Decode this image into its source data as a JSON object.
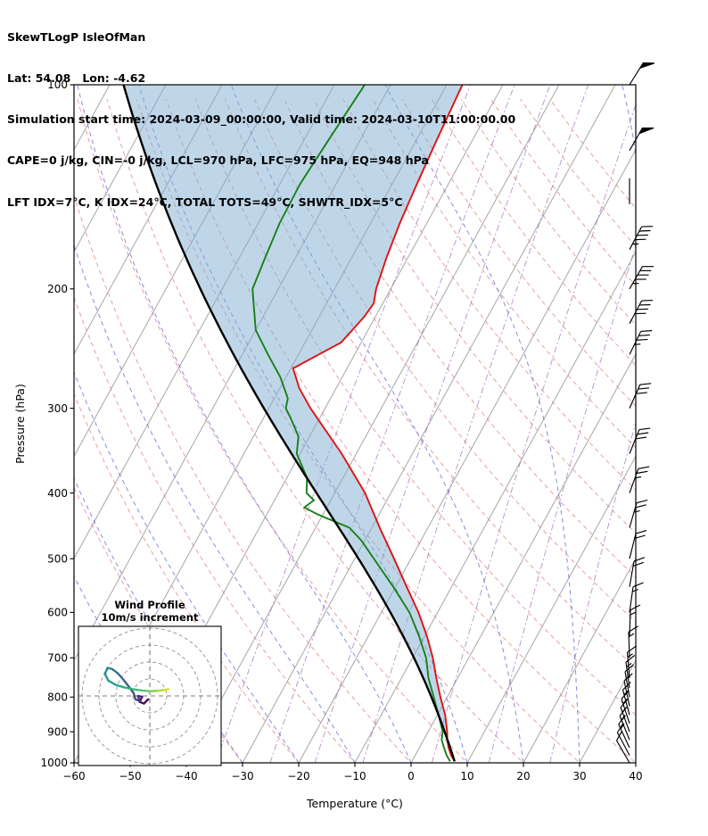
{
  "header": {
    "line1": "SkewTLogP IsleOfMan",
    "line2": "Lat: 54.08   Lon: -4.62",
    "line3": "Simulation start time: 2024-03-09_00:00:00, Valid time: 2024-03-10T11:00:00.00",
    "line4": "CAPE=0 j/kg, CIN=-0 j/kg, LCL=970 hPa, LFC=975 hPa, EQ=948 hPa",
    "line5": "LFT IDX=7°C, K IDX=24°C, TOTAL TOTS=49°C, SHWTR_IDX=5°C"
  },
  "chart_data": {
    "type": "skewt-logp-sounding",
    "skew_factor": 0.55,
    "x_axis": {
      "label": "Temperature (°C)",
      "min": -60,
      "max": 40,
      "ticks": [
        -60,
        -50,
        -40,
        -30,
        -20,
        -10,
        0,
        10,
        20,
        30,
        40
      ]
    },
    "y_axis": {
      "label": "Pressure (hPa)",
      "scale": "log",
      "min": 100,
      "max": 1000,
      "ticks": [
        100,
        200,
        300,
        400,
        500,
        600,
        700,
        800,
        900,
        1000
      ]
    },
    "background": {
      "isotherms_c": [
        -150,
        -140,
        -130,
        -120,
        -110,
        -100,
        -90,
        -80,
        -70,
        -60,
        -50,
        -40,
        -30,
        -20,
        -10,
        0,
        10,
        20,
        30,
        40
      ],
      "isotherm_color": "#a6a6a6",
      "dry_adiabats_theta_c": [
        -30,
        -20,
        -10,
        0,
        10,
        20,
        30,
        40,
        50,
        60,
        70,
        80,
        90,
        100,
        110,
        120,
        130,
        140,
        150,
        160,
        170
      ],
      "dry_adiabat_color": "#e08080",
      "moist_adiabats_t0_c": [
        -40,
        -30,
        -20,
        -10,
        0,
        10,
        20,
        30,
        40
      ],
      "moist_adiabat_color": "#5959d6",
      "mixing_ratio_g_kg": [
        0.2,
        0.5,
        1,
        2,
        5,
        10,
        20
      ],
      "mixing_ratio_color": "#9a50b4"
    },
    "temperature_profile": {
      "color": "#e01212",
      "points": [
        [
          995,
          7.6
        ],
        [
          975,
          6.4
        ],
        [
          950,
          5.2
        ],
        [
          925,
          4.2
        ],
        [
          900,
          3.4
        ],
        [
          850,
          1.4
        ],
        [
          800,
          -1.2
        ],
        [
          750,
          -3.8
        ],
        [
          700,
          -6.4
        ],
        [
          650,
          -9.6
        ],
        [
          600,
          -13.4
        ],
        [
          550,
          -18.0
        ],
        [
          500,
          -23.0
        ],
        [
          450,
          -28.6
        ],
        [
          400,
          -34.6
        ],
        [
          350,
          -42.6
        ],
        [
          300,
          -52.6
        ],
        [
          280,
          -56.6
        ],
        [
          262,
          -59.6
        ],
        [
          250,
          -56.4
        ],
        [
          240,
          -53.6
        ],
        [
          230,
          -52.8
        ],
        [
          220,
          -52.0
        ],
        [
          210,
          -51.6
        ],
        [
          200,
          -52.6
        ],
        [
          180,
          -53.8
        ],
        [
          160,
          -54.8
        ],
        [
          140,
          -55.6
        ],
        [
          120,
          -56.4
        ],
        [
          100,
          -57.2
        ]
      ]
    },
    "dewpoint_profile": {
      "color": "#188018",
      "points": [
        [
          995,
          6.8
        ],
        [
          975,
          5.6
        ],
        [
          950,
          4.4
        ],
        [
          925,
          3.2
        ],
        [
          900,
          2.6
        ],
        [
          850,
          0.2
        ],
        [
          800,
          -2.4
        ],
        [
          750,
          -5.2
        ],
        [
          700,
          -7.6
        ],
        [
          650,
          -11.0
        ],
        [
          600,
          -15.0
        ],
        [
          550,
          -20.4
        ],
        [
          500,
          -26.6
        ],
        [
          470,
          -30.6
        ],
        [
          450,
          -34.0
        ],
        [
          430,
          -41.0
        ],
        [
          420,
          -44.0
        ],
        [
          410,
          -43.0
        ],
        [
          400,
          -45.0
        ],
        [
          380,
          -46.4
        ],
        [
          350,
          -50.6
        ],
        [
          330,
          -52.0
        ],
        [
          310,
          -55.2
        ],
        [
          300,
          -57.0
        ],
        [
          290,
          -57.6
        ],
        [
          270,
          -61.0
        ],
        [
          250,
          -65.4
        ],
        [
          230,
          -70.0
        ],
        [
          210,
          -73.0
        ],
        [
          200,
          -74.6
        ],
        [
          180,
          -75.4
        ],
        [
          160,
          -76.2
        ],
        [
          140,
          -76.4
        ],
        [
          120,
          -75.6
        ],
        [
          100,
          -74.6
        ]
      ]
    },
    "parcel_profile": {
      "color": "#000000",
      "start": {
        "p": 995,
        "t": 7.6
      }
    },
    "shading": {
      "color": "#7fadd1",
      "opacity": 0.5,
      "between": [
        "parcel_profile",
        "temperature_profile"
      ]
    },
    "wind_barbs": {
      "units": "m/s",
      "half_barb": 5,
      "full_barb": 10,
      "pennant": 50,
      "levels": [
        [
          1000,
          330,
          10
        ],
        [
          975,
          332,
          12
        ],
        [
          950,
          335,
          14
        ],
        [
          925,
          338,
          15
        ],
        [
          900,
          340,
          15
        ],
        [
          875,
          342,
          14
        ],
        [
          850,
          345,
          14
        ],
        [
          825,
          348,
          13
        ],
        [
          800,
          350,
          13
        ],
        [
          775,
          352,
          14
        ],
        [
          750,
          355,
          15
        ],
        [
          700,
          358,
          15
        ],
        [
          650,
          2,
          16
        ],
        [
          600,
          8,
          18
        ],
        [
          550,
          10,
          20
        ],
        [
          500,
          14,
          22
        ],
        [
          450,
          16,
          25
        ],
        [
          400,
          20,
          28
        ],
        [
          350,
          22,
          30
        ],
        [
          300,
          24,
          33
        ],
        [
          250,
          26,
          38
        ],
        [
          225,
          28,
          42
        ],
        [
          200,
          30,
          46
        ],
        [
          175,
          28,
          46
        ],
        [
          150,
          0,
          2
        ],
        [
          125,
          30,
          50
        ],
        [
          100,
          32,
          52
        ]
      ]
    },
    "hodograph": {
      "title": "Wind Profile",
      "subtitle": "10m/s increment",
      "ring_step_ms": 10,
      "max_ring_ms": 40,
      "trace": [
        {
          "u": -1.0,
          "v": -2.0,
          "c": "#440154"
        },
        {
          "u": -3.5,
          "v": -4.5,
          "c": "#470d60"
        },
        {
          "u": -6.0,
          "v": -3.5,
          "c": "#48196b"
        },
        {
          "u": -4.5,
          "v": -0.5,
          "c": "#482475"
        },
        {
          "u": -7.0,
          "v": 0.0,
          "c": "#46307e"
        },
        {
          "u": -6.0,
          "v": -3.0,
          "c": "#433c84"
        },
        {
          "u": -8.5,
          "v": -2.0,
          "c": "#3f4788"
        },
        {
          "u": -9.5,
          "v": 1.5,
          "c": "#3a538b"
        },
        {
          "u": -12.0,
          "v": 5.0,
          "c": "#355e8d"
        },
        {
          "u": -15.5,
          "v": 9.5,
          "c": "#30698e"
        },
        {
          "u": -19.0,
          "v": 13.5,
          "c": "#2b748e"
        },
        {
          "u": -22.5,
          "v": 16.0,
          "c": "#277f8e"
        },
        {
          "u": -25.0,
          "v": 16.5,
          "c": "#23898e"
        },
        {
          "u": -26.5,
          "v": 13.0,
          "c": "#21948c"
        },
        {
          "u": -24.5,
          "v": 9.0,
          "c": "#1f9e89"
        },
        {
          "u": -20.0,
          "v": 6.5,
          "c": "#22a884"
        },
        {
          "u": -15.0,
          "v": 5.0,
          "c": "#2cb17e"
        },
        {
          "u": -10.0,
          "v": 4.0,
          "c": "#3dbc74"
        },
        {
          "u": -5.0,
          "v": 3.2,
          "c": "#54c568"
        },
        {
          "u": 0.0,
          "v": 2.8,
          "c": "#7ad151"
        },
        {
          "u": 4.5,
          "v": 3.0,
          "c": "#aadc32"
        },
        {
          "u": 8.5,
          "v": 3.5,
          "c": "#d8e219"
        },
        {
          "u": 11.0,
          "v": 4.0,
          "c": "#fde725"
        }
      ]
    }
  }
}
